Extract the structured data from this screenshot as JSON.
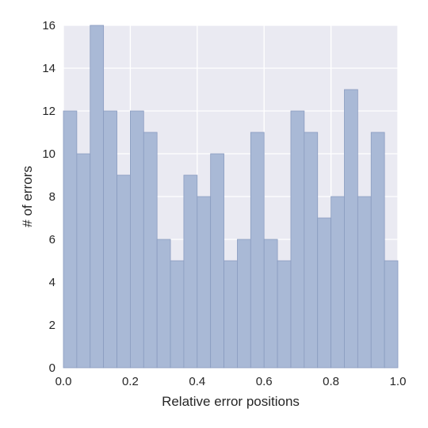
{
  "chart_data": {
    "type": "bar",
    "xlabel": "Relative error positions",
    "ylabel": "# of errors",
    "xlim": [
      0.0,
      1.0
    ],
    "ylim": [
      0,
      16
    ],
    "grid": true,
    "bin_width": 0.04,
    "bin_start": 0.0,
    "values": [
      12,
      10,
      16,
      12,
      9,
      12,
      11,
      6,
      5,
      9,
      8,
      10,
      5,
      6,
      11,
      6,
      5,
      12,
      11,
      7,
      8,
      13,
      8,
      11,
      5
    ],
    "x_ticks": [
      "0.0",
      "0.2",
      "0.4",
      "0.6",
      "0.8",
      "1.0"
    ],
    "x_tick_values": [
      0.0,
      0.2,
      0.4,
      0.6,
      0.8,
      1.0
    ],
    "y_ticks": [
      "0",
      "2",
      "4",
      "6",
      "8",
      "10",
      "12",
      "14",
      "16"
    ],
    "y_tick_values": [
      0,
      2,
      4,
      6,
      8,
      10,
      12,
      14,
      16
    ],
    "colors": {
      "background": "#eaeaf2",
      "grid": "#ffffff",
      "bar_fill": "#a9b9d6",
      "bar_edge": "#8a9cc0"
    }
  }
}
